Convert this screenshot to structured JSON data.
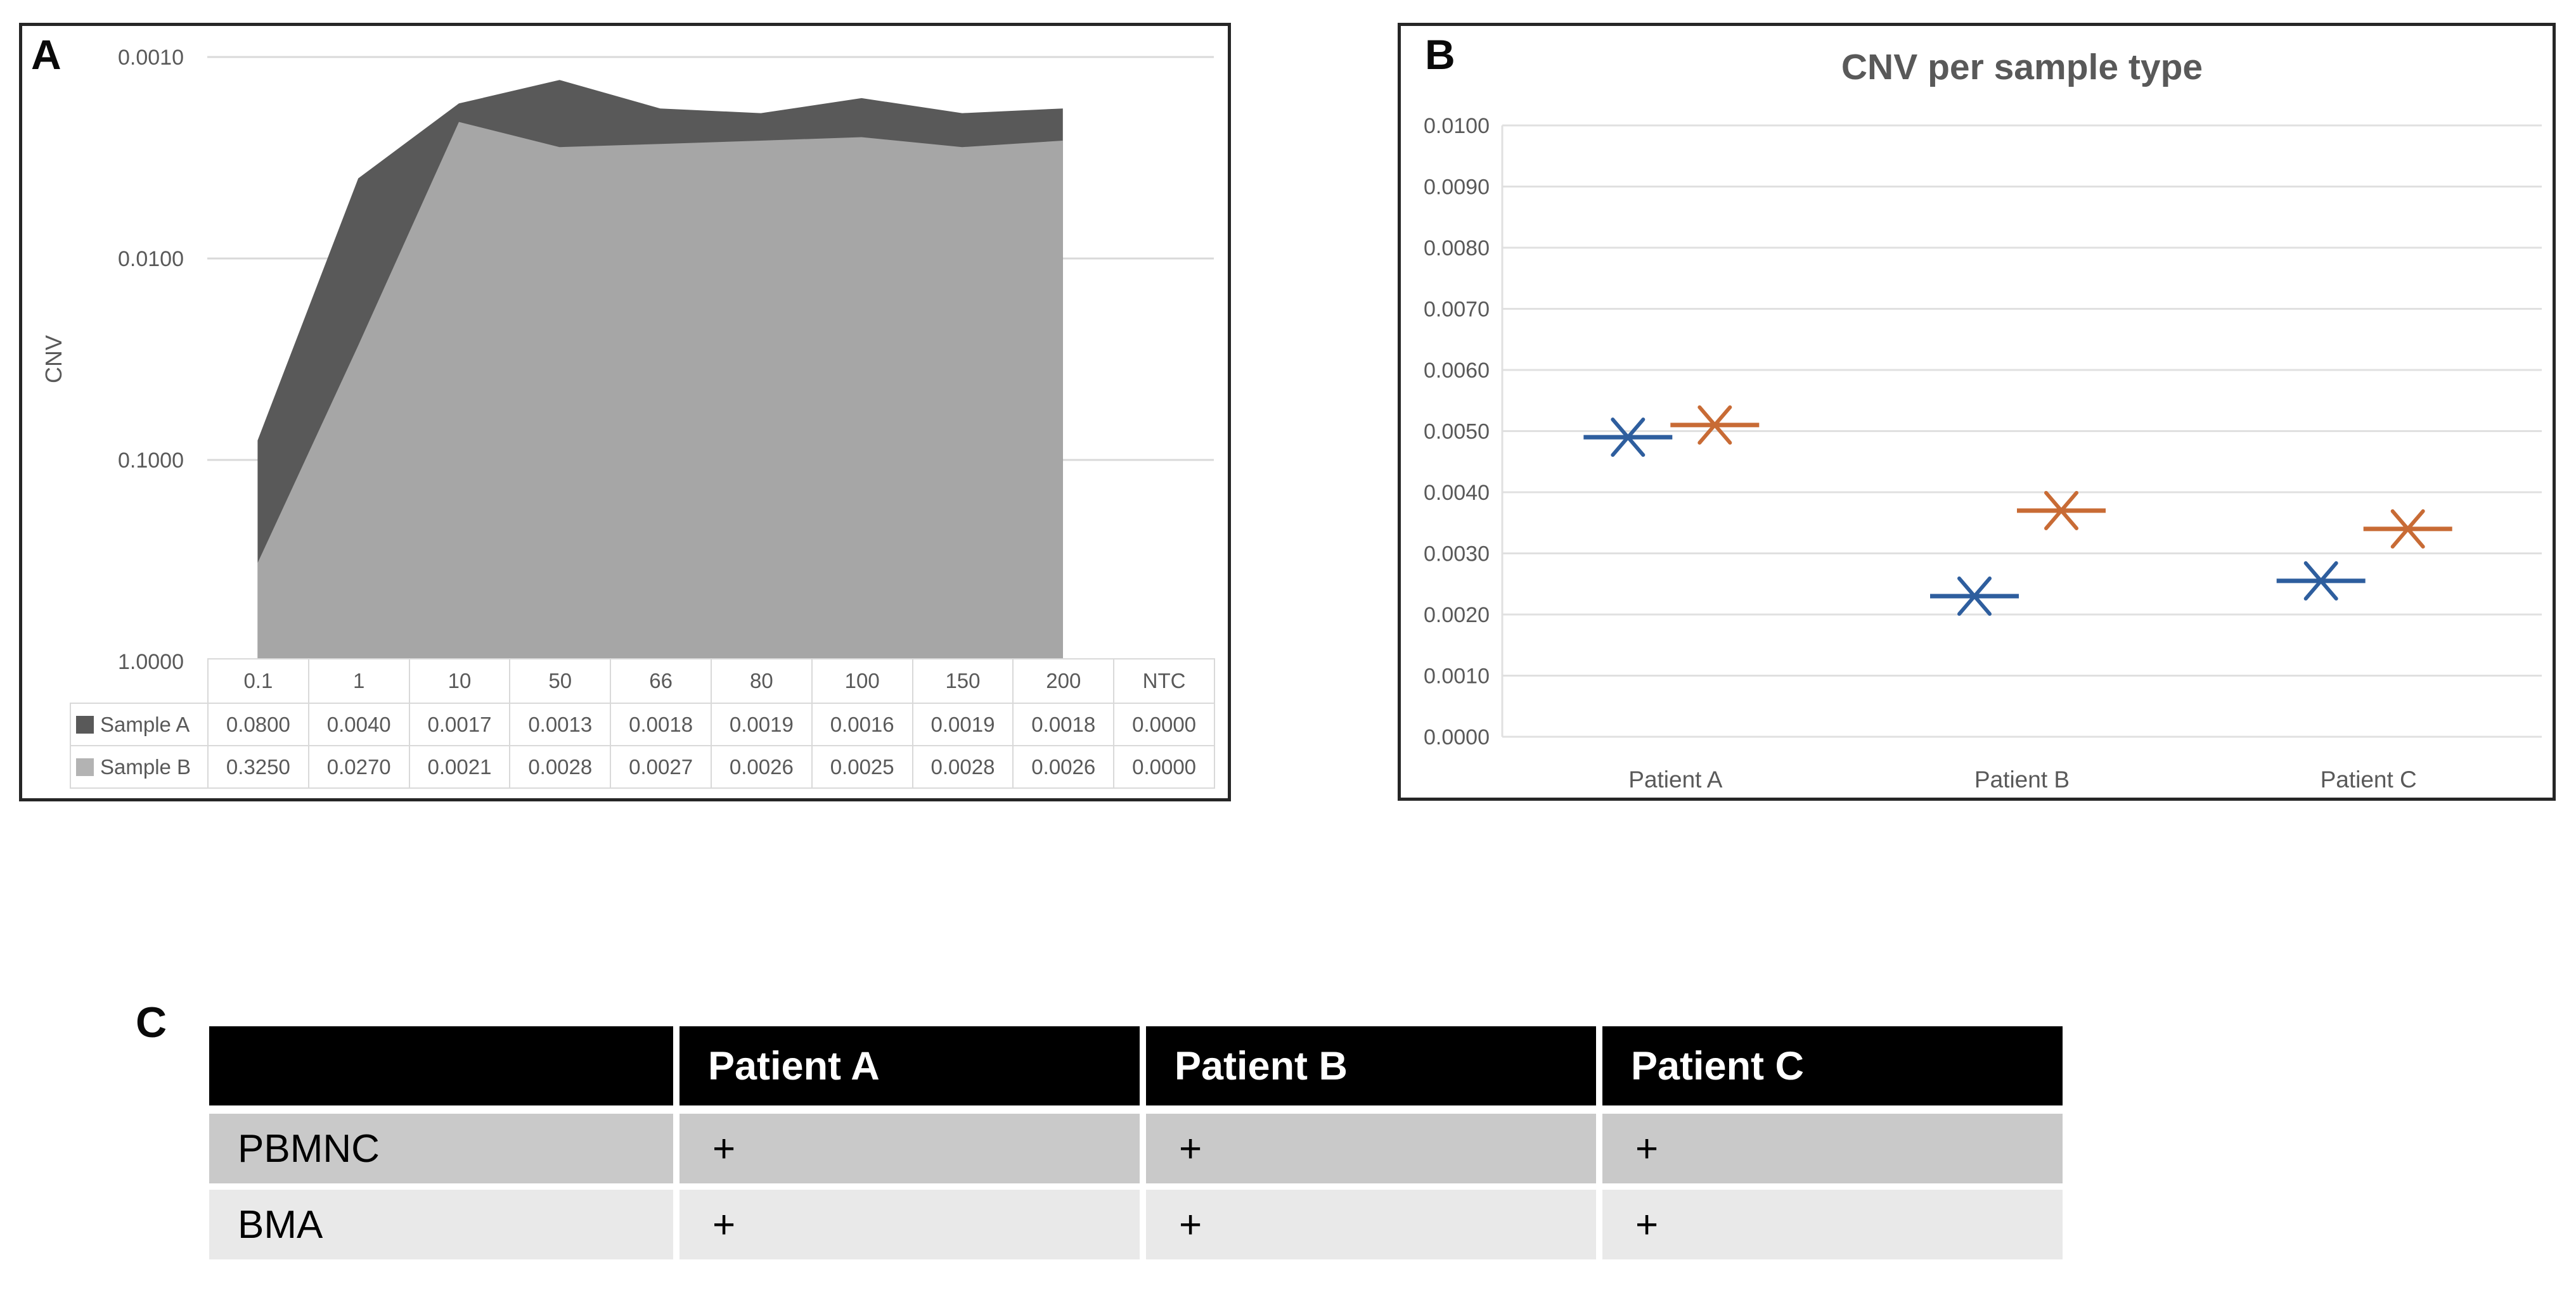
{
  "panels": {
    "a": {
      "label": "A",
      "y_axis_title": "CNV",
      "y_ticks": [
        "0.0010",
        "0.0100",
        "0.1000",
        "1.0000"
      ],
      "table": {
        "categories": [
          "0.1",
          "1",
          "10",
          "50",
          "66",
          "80",
          "100",
          "150",
          "200",
          "NTC"
        ],
        "rows": [
          {
            "name": "Sample A",
            "swatch_color": "#595959",
            "values": [
              "0.0800",
              "0.0040",
              "0.0017",
              "0.0013",
              "0.0018",
              "0.0019",
              "0.0016",
              "0.0019",
              "0.0018",
              "0.0000"
            ]
          },
          {
            "name": "Sample B",
            "swatch_color": "#b3b3b3",
            "values": [
              "0.3250",
              "0.0270",
              "0.0021",
              "0.0028",
              "0.0027",
              "0.0026",
              "0.0025",
              "0.0028",
              "0.0026",
              "0.0000"
            ]
          }
        ]
      }
    },
    "b": {
      "label": "B",
      "title": "CNV per sample type",
      "y_ticks": [
        "0.0000",
        "0.0010",
        "0.0020",
        "0.0030",
        "0.0040",
        "0.0050",
        "0.0060",
        "0.0070",
        "0.0080",
        "0.0090",
        "0.0100"
      ],
      "categories": [
        "Patient A",
        "Patient B",
        "Patient C"
      ]
    },
    "c": {
      "label": "C",
      "table": {
        "header": [
          "",
          "Patient A",
          "Patient B",
          "Patient C"
        ],
        "rows": [
          {
            "name": "PBMNC",
            "values": [
              "+",
              "+",
              "+"
            ]
          },
          {
            "name": "BMA",
            "values": [
              "+",
              "+",
              "+"
            ]
          }
        ]
      }
    }
  },
  "chart_data": [
    {
      "type": "area",
      "panel": "A",
      "ylabel": "CNV",
      "y_scale": "log10-reversed",
      "ylim_top": 0.001,
      "ylim_bottom": 1.0,
      "y_ticks": [
        0.001,
        0.01,
        0.1,
        1.0
      ],
      "grid": true,
      "categories": [
        "0.1",
        "1",
        "10",
        "50",
        "66",
        "80",
        "100",
        "150",
        "200",
        "NTC"
      ],
      "series": [
        {
          "name": "Sample A",
          "color": "#595959",
          "values": [
            0.08,
            0.004,
            0.0017,
            0.0013,
            0.0018,
            0.0019,
            0.0016,
            0.0019,
            0.0018,
            0
          ]
        },
        {
          "name": "Sample B",
          "color": "#a6a6a6",
          "values": [
            0.325,
            0.027,
            0.0021,
            0.0028,
            0.0027,
            0.0026,
            0.0025,
            0.0028,
            0.0026,
            0
          ]
        }
      ]
    },
    {
      "type": "scatter",
      "panel": "B",
      "title": "CNV per sample type",
      "ylim": [
        0,
        0.01
      ],
      "y_tick_step": 0.001,
      "grid": true,
      "legend_position": "none",
      "categories": [
        "Patient A",
        "Patient B",
        "Patient C"
      ],
      "series": [
        {
          "name": "Series 1 (blue)",
          "color": "#2e5e9e",
          "marker": "x-dash",
          "x_offset": -75,
          "values": [
            0.0049,
            0.0023,
            0.00255
          ]
        },
        {
          "name": "Series 2 (orange)",
          "color": "#c86b35",
          "marker": "x-dash",
          "x_offset": 62,
          "values": [
            0.0051,
            0.0037,
            0.0034
          ]
        }
      ]
    }
  ],
  "colors": {
    "panel_border": "#262626",
    "gridline_a": "#d9d9d9",
    "gridline_b": "#e0e0e0",
    "axis_text": "#595959",
    "table_border": "#d9d9d9",
    "c_header_bg": "#000000",
    "c_header_text": "#ffffff",
    "c_row1_bg": "#c9c9c9",
    "c_row2_bg": "#e9e9e9"
  }
}
